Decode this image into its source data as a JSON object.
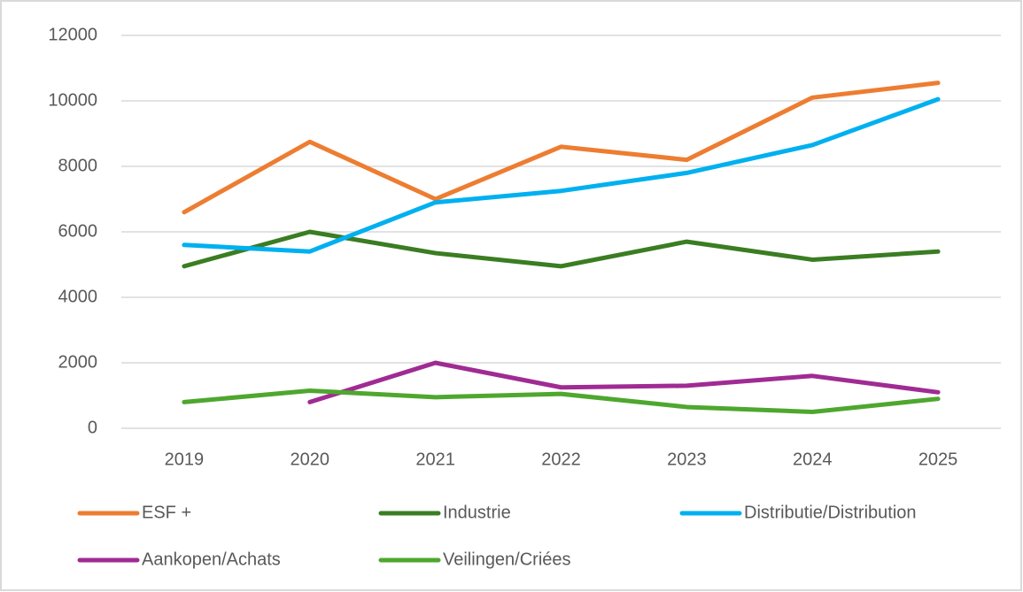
{
  "chart_data": {
    "type": "line",
    "categories": [
      "2019",
      "2020",
      "2021",
      "2022",
      "2023",
      "2024",
      "2025"
    ],
    "series": [
      {
        "name": "ESF +",
        "color": "#ed7d31",
        "values": [
          6600,
          8750,
          7000,
          8600,
          8200,
          10100,
          10550
        ]
      },
      {
        "name": "Industrie",
        "color": "#3a7d22",
        "values": [
          4950,
          6000,
          5350,
          4950,
          5700,
          5150,
          5400
        ]
      },
      {
        "name": "Distributie/Distribution",
        "color": "#00b0f0",
        "values": [
          5600,
          5400,
          6900,
          7250,
          7800,
          8650,
          10050
        ]
      },
      {
        "name": "Aankopen/Achats",
        "color": "#a02b93",
        "values": [
          null,
          800,
          2000,
          1250,
          1300,
          1600,
          1100
        ]
      },
      {
        "name": "Veilingen/Criées",
        "color": "#4ea72e",
        "values": [
          800,
          1150,
          950,
          1050,
          650,
          500,
          900
        ]
      }
    ],
    "ylim": [
      0,
      12000
    ],
    "yticks": [
      0,
      2000,
      4000,
      6000,
      8000,
      10000,
      12000
    ],
    "grid": true,
    "legend": "bottom"
  }
}
